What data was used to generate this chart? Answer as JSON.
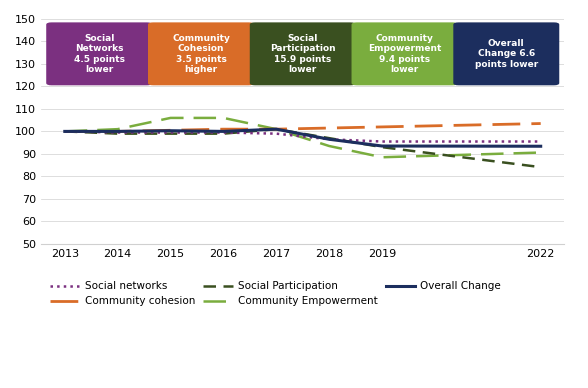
{
  "years": [
    2013,
    2014,
    2015,
    2016,
    2017,
    2018,
    2019,
    2022
  ],
  "social_networks": [
    100,
    99.5,
    99.5,
    99.5,
    99,
    96.5,
    95.5,
    95.5
  ],
  "community_cohesion": [
    100,
    100,
    100.5,
    101,
    101,
    101.5,
    102,
    103.5
  ],
  "social_participation": [
    100,
    99,
    99,
    99,
    101,
    97,
    93,
    84.1
  ],
  "community_empowerment": [
    100,
    101,
    106,
    106,
    101,
    93.5,
    88.5,
    90.6
  ],
  "overall_change": [
    100,
    100,
    100.3,
    100,
    101,
    96.5,
    93.5,
    93.4
  ],
  "ylim": [
    50,
    150
  ],
  "yticks": [
    50,
    60,
    70,
    80,
    90,
    100,
    110,
    120,
    130,
    140,
    150
  ],
  "boxes": [
    {
      "label": "Social\nNetworks\n4.5 points\nlower",
      "color": "#7b3080"
    },
    {
      "label": "Community\nCohesion\n3.5 points\nhigher",
      "color": "#d96c28"
    },
    {
      "label": "Social\nParticipation\n15.9 points\nlower",
      "color": "#3a5020"
    },
    {
      "label": "Community\nEmpowerment\n9.4 points\nlower",
      "color": "#7aad3e"
    },
    {
      "label": "Overall\nChange 6.6\npoints lower",
      "color": "#1c2e5e"
    }
  ],
  "line_colors": {
    "social_networks": "#7b3080",
    "community_cohesion": "#d96c28",
    "social_participation": "#3a5020",
    "community_empowerment": "#7aad3e",
    "overall_change": "#1c2e5e"
  },
  "legend_labels": {
    "social_networks": "Social networks",
    "community_cohesion": "Community cohesion",
    "social_participation": "Social Participation",
    "community_empowerment": "Community Empowerment",
    "overall_change": "Overall Change"
  },
  "background_color": "#ffffff",
  "grid_color": "#d0d0d0"
}
